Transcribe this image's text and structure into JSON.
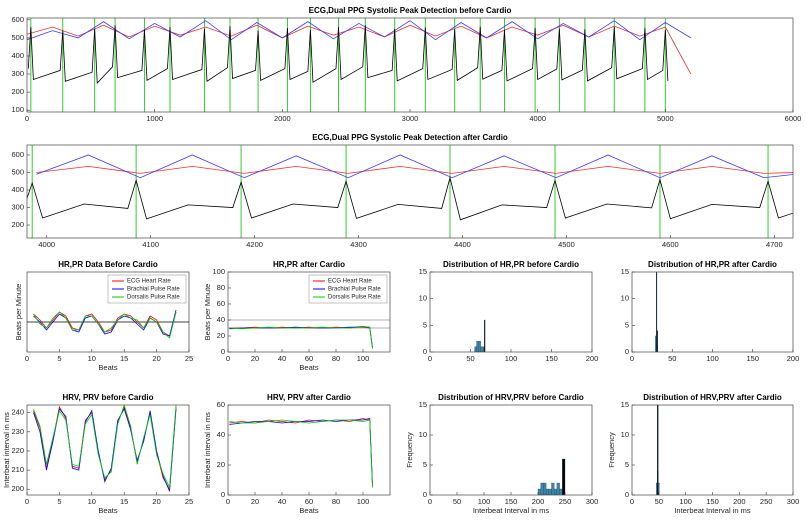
{
  "chart_data": [
    {
      "type": "line",
      "title": "ECG,Dual PPG Systolic Peak Detection before Cardio",
      "xlim": [
        0,
        6000
      ],
      "xticks": [
        0,
        1000,
        2000,
        3000,
        4000,
        5000,
        6000
      ],
      "ylim": [
        90,
        610
      ],
      "yticks": [
        100,
        200,
        300,
        400,
        500,
        600
      ],
      "vlines": [
        30,
        280,
        530,
        690,
        920,
        1120,
        1390,
        1590,
        1810,
        2040,
        2220,
        2440,
        2650,
        2880,
        3120,
        3350,
        3550,
        3740,
        3980,
        4170,
        4370,
        4600,
        4840,
        5000
      ],
      "vline_color": "#33cc33",
      "series": [
        {
          "color": "#e8312f",
          "x": [
            0,
            200,
            400,
            600,
            800,
            1000,
            1200,
            1400,
            1600,
            1800,
            2000,
            2200,
            2400,
            2600,
            2800,
            3000,
            3200,
            3400,
            3600,
            3800,
            4000,
            4200,
            4400,
            4600,
            4800,
            5000,
            5200
          ],
          "values": [
            520,
            560,
            510,
            570,
            505,
            565,
            515,
            560,
            510,
            570,
            500,
            565,
            515,
            560,
            505,
            570,
            510,
            565,
            500,
            560,
            515,
            570,
            505,
            565,
            510,
            560,
            300
          ]
        },
        {
          "color": "#3b3bff",
          "x": [
            0,
            200,
            400,
            600,
            800,
            1000,
            1200,
            1400,
            1600,
            1800,
            2000,
            2200,
            2400,
            2600,
            2800,
            3000,
            3200,
            3400,
            3600,
            3800,
            4000,
            4200,
            4400,
            4600,
            4800,
            5000,
            5200
          ],
          "values": [
            490,
            540,
            500,
            590,
            495,
            580,
            505,
            595,
            490,
            585,
            500,
            590,
            495,
            580,
            505,
            595,
            490,
            585,
            500,
            590,
            495,
            580,
            505,
            595,
            490,
            585,
            500
          ]
        },
        {
          "color": "#000000",
          "x": [
            10,
            30,
            50,
            260,
            280,
            300,
            510,
            530,
            550,
            670,
            690,
            710,
            900,
            920,
            940,
            1100,
            1120,
            1140,
            1370,
            1390,
            1410,
            1570,
            1590,
            1610,
            1790,
            1810,
            1830,
            2020,
            2040,
            2060,
            2200,
            2220,
            2240,
            2420,
            2440,
            2460,
            2630,
            2650,
            2670,
            2860,
            2880,
            2900,
            3100,
            3120,
            3140,
            3330,
            3350,
            3370,
            3530,
            3550,
            3570,
            3720,
            3740,
            3760,
            3960,
            3980,
            4000,
            4150,
            4170,
            4190,
            4350,
            4370,
            4390,
            4580,
            4600,
            4620,
            4820,
            4840,
            4860,
            4980,
            5000,
            5020
          ],
          "values": [
            330,
            560,
            270,
            320,
            540,
            260,
            310,
            550,
            250,
            340,
            570,
            280,
            320,
            545,
            265,
            330,
            560,
            270,
            325,
            550,
            260,
            335,
            565,
            275,
            320,
            540,
            265,
            330,
            555,
            270,
            315,
            545,
            255,
            330,
            560,
            270,
            340,
            570,
            280,
            320,
            550,
            262,
            330,
            558,
            270,
            325,
            548,
            265,
            335,
            562,
            272,
            320,
            545,
            262,
            330,
            555,
            270,
            328,
            552,
            268,
            322,
            548,
            262,
            335,
            560,
            274,
            330,
            556,
            270,
            320,
            545,
            262
          ]
        }
      ]
    },
    {
      "type": "line",
      "title": "ECG,Dual PPG Systolic Peak Detection after Cardio",
      "xlim": [
        3981,
        4718
      ],
      "xticks": [
        4000,
        4100,
        4200,
        4300,
        4400,
        4500,
        4600,
        4700
      ],
      "ylim": [
        126,
        657
      ],
      "yticks": [
        200,
        300,
        400,
        500,
        600
      ],
      "vlines": [
        3986,
        4086,
        4187,
        4288,
        4388,
        4489,
        4590,
        4694
      ],
      "vline_color": "#33cc33",
      "series": [
        {
          "color": "#e8312f",
          "x": [
            3990,
            4040,
            4090,
            4140,
            4190,
            4240,
            4290,
            4340,
            4390,
            4440,
            4490,
            4540,
            4590,
            4640,
            4690,
            4720
          ],
          "values": [
            500,
            535,
            495,
            535,
            495,
            535,
            495,
            535,
            495,
            535,
            495,
            535,
            495,
            535,
            495,
            500
          ]
        },
        {
          "color": "#3b3bff",
          "x": [
            3990,
            4040,
            4090,
            4140,
            4190,
            4240,
            4290,
            4340,
            4390,
            4440,
            4490,
            4540,
            4590,
            4640,
            4690,
            4720
          ],
          "values": [
            490,
            600,
            470,
            600,
            470,
            595,
            470,
            600,
            470,
            595,
            470,
            600,
            470,
            595,
            470,
            490
          ]
        },
        {
          "color": "#000000",
          "x": [
            3978,
            3986,
            3996,
            4036,
            4078,
            4086,
            4096,
            4136,
            4179,
            4187,
            4197,
            4237,
            4280,
            4288,
            4298,
            4338,
            4380,
            4388,
            4398,
            4438,
            4481,
            4489,
            4499,
            4539,
            4582,
            4590,
            4600,
            4640,
            4686,
            4694,
            4704,
            4744
          ],
          "values": [
            300,
            440,
            240,
            320,
            295,
            455,
            235,
            315,
            300,
            445,
            240,
            320,
            300,
            450,
            238,
            318,
            295,
            470,
            230,
            315,
            300,
            455,
            240,
            320,
            298,
            460,
            236,
            318,
            300,
            450,
            240,
            320
          ]
        }
      ]
    },
    {
      "type": "line",
      "title": "HR,PR Data Before Cardio",
      "xlabel": "Beats",
      "ylabel": "Beats per Minute",
      "xlim": [
        0,
        25
      ],
      "xticks": [
        0,
        5,
        10,
        15,
        20,
        25
      ],
      "ylim": [
        50,
        90
      ],
      "hlines": [
        65
      ],
      "hline_color": "#000000",
      "legend": "upper right",
      "x": [
        1,
        2,
        3,
        4,
        5,
        6,
        7,
        8,
        9,
        10,
        11,
        12,
        13,
        14,
        15,
        16,
        17,
        18,
        19,
        20,
        21,
        22,
        23
      ],
      "series": [
        {
          "name": "ECG Heart Rate",
          "color": "#ff0000",
          "values": [
            69,
            66,
            62,
            66,
            70,
            68,
            62,
            61,
            68,
            69,
            65,
            60,
            61,
            67,
            69,
            68,
            65,
            62,
            68,
            66,
            60,
            58,
            70
          ]
        },
        {
          "name": "Brachial Pulse Rate",
          "color": "#0000ff",
          "values": [
            68,
            65,
            61,
            65,
            69,
            67,
            61,
            60,
            67,
            68,
            64,
            59,
            60,
            66,
            68,
            67,
            64,
            61,
            67,
            65,
            59,
            58,
            71
          ]
        },
        {
          "name": "Dorsalis Pulse Rate",
          "color": "#00cc00",
          "values": [
            69,
            64,
            62,
            67,
            70,
            67,
            61,
            61,
            68,
            68,
            64,
            60,
            62,
            66,
            69,
            67,
            66,
            62,
            67,
            65,
            60,
            57,
            70
          ]
        }
      ]
    },
    {
      "type": "line",
      "title": "HR,PR after Cardio",
      "xlabel": "Beats",
      "ylabel": "Beats per Minute",
      "xlim": [
        0,
        120
      ],
      "xticks": [
        0,
        20,
        40,
        60,
        80,
        100
      ],
      "ylim": [
        0,
        100
      ],
      "yticks": [
        0,
        20,
        40,
        60,
        80,
        100
      ],
      "hlines": [
        40,
        30
      ],
      "hline_color": "#999999",
      "legend": "upper right",
      "x": [
        1,
        10,
        20,
        30,
        40,
        50,
        60,
        70,
        80,
        90,
        100,
        105,
        107
      ],
      "series": [
        {
          "name": "ECG Heart Rate",
          "color": "#ff0000",
          "values": [
            30,
            30,
            31,
            30,
            31,
            30,
            31,
            30,
            31,
            30,
            32,
            31,
            5
          ]
        },
        {
          "name": "Brachial Pulse Rate",
          "color": "#0000ff",
          "values": [
            29,
            30,
            30,
            30,
            30,
            31,
            30,
            30,
            30,
            31,
            31,
            30,
            6
          ]
        },
        {
          "name": "Dorsalis Pulse Rate",
          "color": "#00cc00",
          "values": [
            30,
            29,
            30,
            31,
            30,
            30,
            30,
            31,
            30,
            30,
            31,
            31,
            4
          ]
        }
      ]
    },
    {
      "type": "histogram",
      "title": "Distribution of HR,PR before Cardio",
      "xlim": [
        0,
        200
      ],
      "xticks": [
        0,
        50,
        100,
        150,
        200
      ],
      "ylim": [
        0,
        15
      ],
      "yticks": [
        0,
        5,
        10,
        15
      ],
      "series": [
        {
          "color": "#3d85a8",
          "bins": [
            55,
            57.5,
            60,
            62.5,
            65
          ],
          "values": [
            1,
            2,
            2,
            1
          ]
        },
        {
          "color": "#000000",
          "bins": [
            66,
            67,
            68
          ],
          "values": [
            1,
            6
          ]
        }
      ]
    },
    {
      "type": "histogram",
      "title": "Distribution of HR,PR after Cardio",
      "xlim": [
        0,
        200
      ],
      "xticks": [
        0,
        50,
        100,
        150,
        200
      ],
      "ylim": [
        0,
        15
      ],
      "yticks": [
        0,
        5,
        10,
        15
      ],
      "series": [
        {
          "color": "#3d85a8",
          "bins": [
            29,
            30,
            31,
            32
          ],
          "values": [
            3,
            2,
            1
          ]
        },
        {
          "color": "#000000",
          "bins": [
            30,
            31,
            32
          ],
          "values": [
            15,
            4
          ]
        }
      ]
    },
    {
      "type": "line",
      "title": "HRV, PRV before Cardio",
      "xlabel": "Beats",
      "ylabel": "Interbeat interval in ms",
      "xlim": [
        0,
        25
      ],
      "xticks": [
        0,
        5,
        10,
        15,
        20,
        25
      ],
      "ylim": [
        197,
        244
      ],
      "yticks": [
        200,
        210,
        220,
        230,
        240
      ],
      "x": [
        1,
        2,
        3,
        4,
        5,
        6,
        7,
        8,
        9,
        10,
        11,
        12,
        13,
        14,
        15,
        16,
        17,
        18,
        19,
        20,
        21,
        22,
        23
      ],
      "series": [
        {
          "color": "#ff0000",
          "values": [
            241,
            232,
            211,
            226,
            243,
            237,
            212,
            211,
            236,
            240,
            219,
            205,
            210,
            235,
            243,
            232,
            214,
            226,
            240,
            219,
            206,
            200,
            243
          ]
        },
        {
          "color": "#0000ff",
          "values": [
            240,
            230,
            210,
            225,
            242,
            238,
            211,
            210,
            235,
            241,
            220,
            204,
            211,
            236,
            242,
            231,
            215,
            225,
            241,
            220,
            207,
            199,
            242
          ]
        },
        {
          "color": "#00cc00",
          "values": [
            242,
            233,
            213,
            227,
            241,
            236,
            213,
            212,
            234,
            239,
            218,
            206,
            209,
            234,
            244,
            233,
            213,
            227,
            239,
            218,
            208,
            201,
            244
          ]
        }
      ]
    },
    {
      "type": "line",
      "title": "HRV, PRV after Cardio",
      "xlabel": "Beats",
      "ylabel": "Interbeat interval in ms",
      "xlim": [
        0,
        120
      ],
      "xticks": [
        0,
        20,
        40,
        60,
        80,
        100
      ],
      "ylim": [
        0,
        60
      ],
      "yticks": [
        0,
        20,
        40,
        60
      ],
      "x": [
        1,
        10,
        20,
        30,
        40,
        50,
        60,
        70,
        80,
        90,
        100,
        105,
        107
      ],
      "series": [
        {
          "color": "#ff0000",
          "values": [
            48,
            49,
            48,
            50,
            49,
            48,
            50,
            49,
            50,
            49,
            51,
            50,
            6
          ]
        },
        {
          "color": "#0000ff",
          "values": [
            47,
            48,
            49,
            49,
            48,
            49,
            49,
            50,
            49,
            50,
            50,
            51,
            7
          ]
        },
        {
          "color": "#00cc00",
          "values": [
            49,
            48,
            48,
            49,
            50,
            49,
            48,
            49,
            50,
            50,
            49,
            50,
            5
          ]
        }
      ]
    },
    {
      "type": "histogram",
      "title": "Distribution of HRV,PRV before Cardio",
      "xlabel": "Interbeat Interval in ms",
      "ylabel": "Frequency",
      "xlim": [
        0,
        300
      ],
      "xticks": [
        0,
        50,
        100,
        150,
        200,
        250,
        300
      ],
      "ylim": [
        0,
        15
      ],
      "yticks": [
        0,
        5,
        10,
        15
      ],
      "series": [
        {
          "color": "#3d85a8",
          "bins": [
            200,
            205,
            210,
            215,
            220,
            225,
            230,
            235,
            240,
            245
          ],
          "values": [
            1,
            2,
            2,
            1,
            1,
            2,
            1,
            2,
            1
          ]
        },
        {
          "color": "#000000",
          "bins": [
            245,
            250
          ],
          "values": [
            6
          ]
        }
      ]
    },
    {
      "type": "histogram",
      "title": "Distribution of HRV,PRV after Cardio",
      "xlabel": "Interbeat Interval in ms",
      "ylabel": "Frequency",
      "xlim": [
        0,
        300
      ],
      "xticks": [
        0,
        50,
        100,
        150,
        200,
        250,
        300
      ],
      "ylim": [
        0,
        15
      ],
      "yticks": [
        0,
        5,
        10,
        15
      ],
      "series": [
        {
          "color": "#3d85a8",
          "bins": [
            45,
            47,
            49,
            51
          ],
          "values": [
            2,
            4,
            2
          ]
        },
        {
          "color": "#000000",
          "bins": [
            47,
            49
          ],
          "values": [
            15
          ]
        }
      ]
    }
  ]
}
